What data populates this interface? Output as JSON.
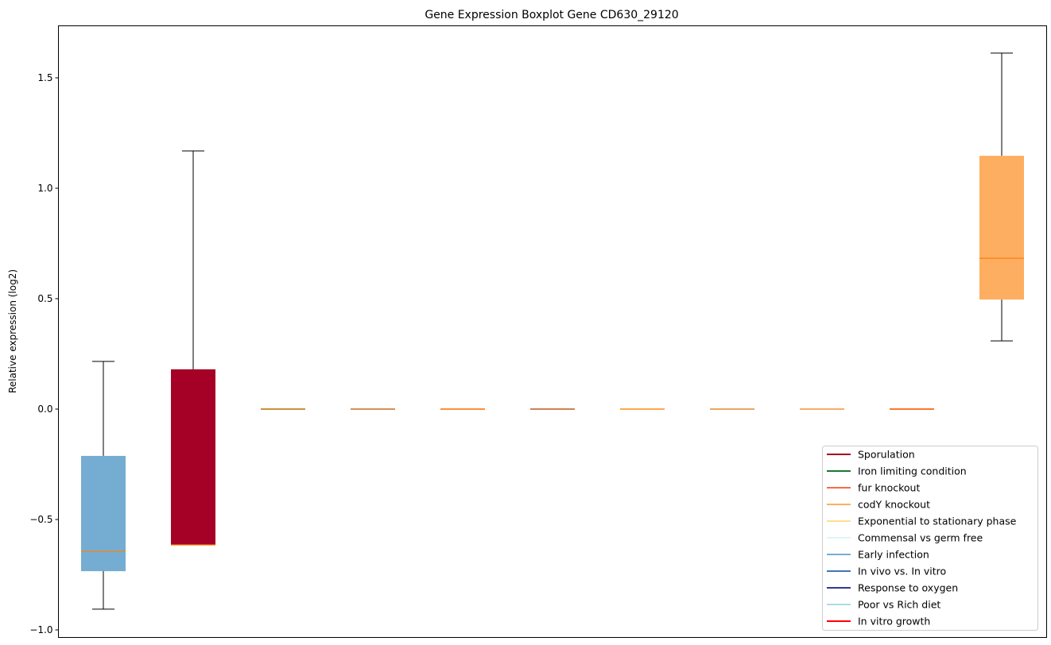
{
  "chart_data": {
    "type": "box",
    "title": "Gene Expression Boxplot Gene CD630_29120",
    "xlabel": "",
    "ylabel": "Relative expression (log2)",
    "ylim": [
      -1.03,
      1.73
    ],
    "yticks": [
      -1.0,
      -0.5,
      0.0,
      0.5,
      1.0,
      1.5
    ],
    "ytick_labels": [
      "−1.0",
      "−0.5",
      "0.0",
      "0.5",
      "1.0",
      "1.5"
    ],
    "grid": false,
    "legend_position": "bottom-right",
    "median_color": "#ff7f0e",
    "boxes": [
      {
        "color": "#74add1",
        "whislo": -0.906,
        "q1": -0.734,
        "med": -0.644,
        "q3": -0.212,
        "whishi": 0.216
      },
      {
        "color": "#a50026",
        "whislo": -0.615,
        "q1": -0.615,
        "med": -0.615,
        "q3": 0.18,
        "whishi": 1.169
      },
      {
        "color": "#1b7837",
        "whislo": 0,
        "q1": 0,
        "med": 0,
        "q3": 0,
        "whishi": 0
      },
      {
        "color": "#4575b4",
        "whislo": 0,
        "q1": 0,
        "med": 0,
        "q3": 0,
        "whishi": 0
      },
      {
        "color": "#f46d43",
        "whislo": 0,
        "q1": 0,
        "med": 0,
        "q3": 0,
        "whishi": 0
      },
      {
        "color": "#313695",
        "whislo": 0,
        "q1": 0,
        "med": 0,
        "q3": 0,
        "whishi": 0
      },
      {
        "color": "#fee090",
        "whislo": 0,
        "q1": 0,
        "med": 0,
        "q3": 0,
        "whishi": 0
      },
      {
        "color": "#abd9e9",
        "whislo": 0,
        "q1": 0,
        "med": 0,
        "q3": 0,
        "whishi": 0
      },
      {
        "color": "#e0f3f8",
        "whislo": 0,
        "q1": 0,
        "med": 0,
        "q3": 0,
        "whishi": 0
      },
      {
        "color": "#ff0000",
        "whislo": 0,
        "q1": 0,
        "med": 0,
        "q3": 0,
        "whishi": 0
      },
      {
        "color": "#fdae61",
        "whislo": 0.309,
        "q1": 0.496,
        "med": 0.683,
        "q3": 1.147,
        "whishi": 1.612
      }
    ],
    "legend": [
      {
        "label": "Sporulation",
        "color": "#a50026"
      },
      {
        "label": "Iron limiting condition",
        "color": "#1b7837"
      },
      {
        "label": "fur knockout",
        "color": "#f46d43"
      },
      {
        "label": "codY knockout",
        "color": "#fdae61"
      },
      {
        "label": "Exponential to stationary phase",
        "color": "#fee090"
      },
      {
        "label": "Commensal vs germ free",
        "color": "#e0f3f8"
      },
      {
        "label": "Early infection",
        "color": "#74add1"
      },
      {
        "label": "In vivo vs. In vitro",
        "color": "#4575b4"
      },
      {
        "label": "Response to oxygen",
        "color": "#313695"
      },
      {
        "label": "Poor vs Rich diet",
        "color": "#abd9e9"
      },
      {
        "label": "In vitro growth",
        "color": "#ff0000"
      }
    ]
  }
}
